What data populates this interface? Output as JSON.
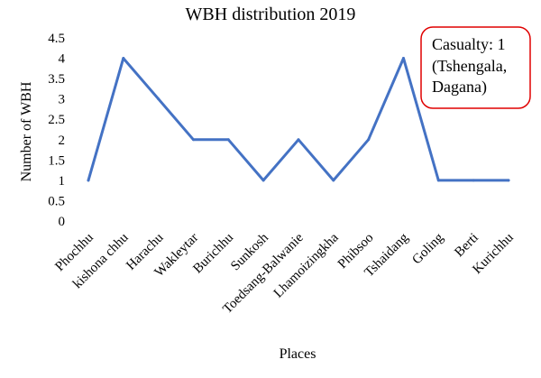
{
  "chart_data": {
    "type": "line",
    "title": "WBH distribution 2019",
    "xlabel": "Places",
    "ylabel": "Number of WBH",
    "categories": [
      "Phochhu",
      "kishona chhu",
      "Harachu",
      "Wakleytar",
      "Burichhu",
      "Sunkosh",
      "Toedsang-Balwanie",
      "Lhamoizingkha",
      "Phibsoo",
      "Tshaidang",
      "Goling",
      "Berti",
      "Kurichhu"
    ],
    "series": [
      {
        "values": [
          1,
          4,
          3,
          2,
          2,
          1,
          2,
          1,
          2,
          4,
          1,
          1,
          1
        ]
      }
    ],
    "ylim": [
      0,
      4.5
    ],
    "yticks": [
      0,
      0.5,
      1,
      1.5,
      2,
      2.5,
      3,
      3.5,
      4,
      4.5
    ],
    "ytick_labels": [
      "0",
      "0.5",
      "1",
      "1.5",
      "2",
      "2.5",
      "3",
      "3.5",
      "4",
      "4.5"
    ],
    "grid": false,
    "line_color": "#4472c4",
    "annotation": {
      "lines": [
        "Casualty: 1",
        "(Tshengala,",
        "Dagana)"
      ],
      "border_color": "#e00000"
    }
  }
}
